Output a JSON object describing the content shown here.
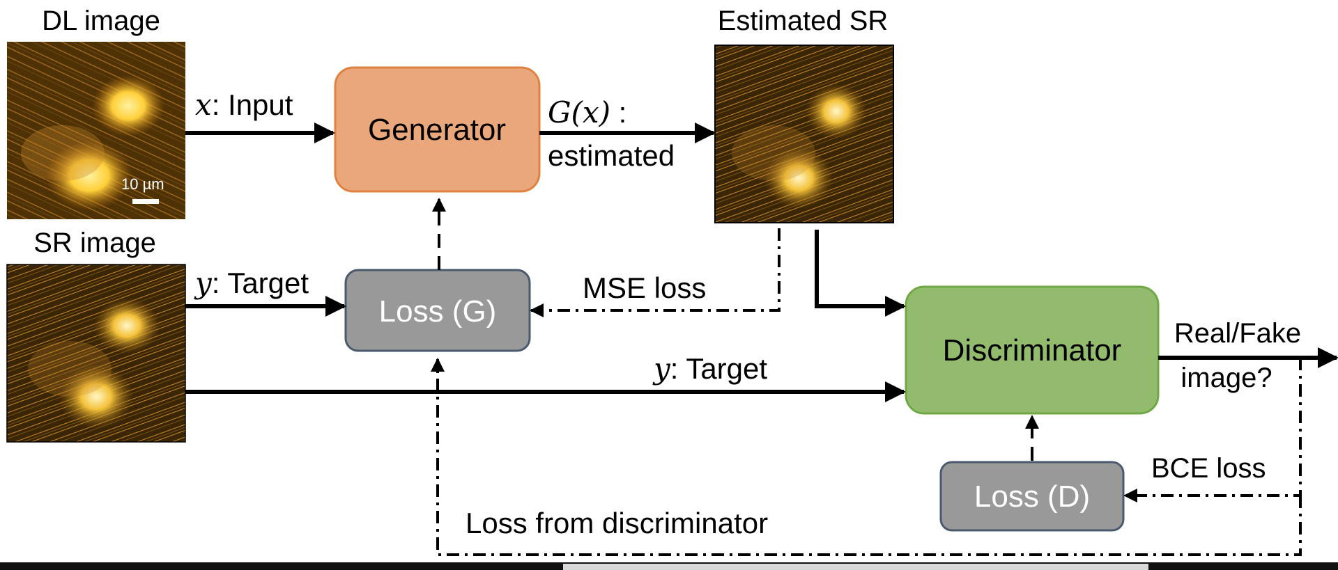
{
  "labels": {
    "dl_image": "DL image",
    "sr_image": "SR image",
    "estimated_sr": "Estimated SR",
    "scale_bar": "10 µm"
  },
  "nodes": {
    "generator": "Generator",
    "loss_g": "Loss (G)",
    "discriminator": "Discriminator",
    "loss_d": "Loss (D)"
  },
  "edges": {
    "input_var": "x",
    "input_text": ": Input",
    "gx_var": "G(x)",
    "gx_text": " :",
    "estimated_text": "estimated",
    "target_var": "y",
    "target_text": ": Target",
    "target2_var": "y",
    "target2_text": ": Target",
    "mse_loss": "MSE loss",
    "real_fake_1": "Real/Fake",
    "real_fake_2": "image?",
    "bce_loss": "BCE loss",
    "loss_from_disc": "Loss from discriminator"
  },
  "colors": {
    "generator_fill": "#E9A77B",
    "generator_stroke": "#E0823F",
    "loss_fill": "#999999",
    "loss_stroke": "#4A5A6E",
    "discriminator_fill": "#93BB6E",
    "discriminator_stroke": "#6FA845",
    "microscopy_bg": "#5A3A08",
    "microscopy_fiber": "#C8862A",
    "microscopy_cell": "#FFD24A"
  }
}
